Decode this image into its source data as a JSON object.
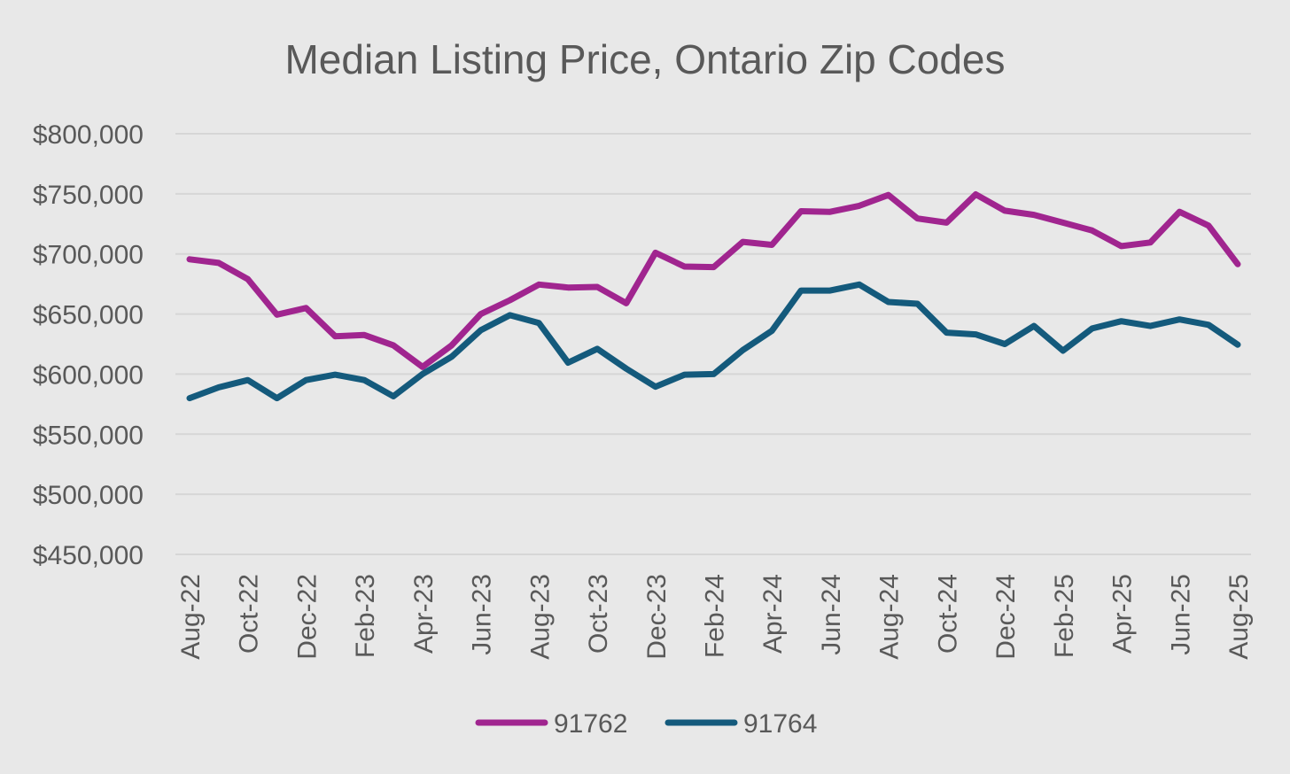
{
  "chart_data": {
    "type": "line",
    "title": "Median Listing Price, Ontario Zip Codes",
    "xlabel": "",
    "ylabel": "",
    "ylim": [
      450000,
      800000
    ],
    "yticks": [
      "$450,000",
      "$500,000",
      "$550,000",
      "$600,000",
      "$650,000",
      "$700,000",
      "$750,000",
      "$800,000"
    ],
    "ytick_values": [
      450000,
      500000,
      550000,
      600000,
      650000,
      700000,
      750000,
      800000
    ],
    "grid": true,
    "legend_position": "bottom",
    "x": [
      "Aug-22",
      "Sep-22",
      "Oct-22",
      "Nov-22",
      "Dec-22",
      "Jan-23",
      "Feb-23",
      "Mar-23",
      "Apr-23",
      "May-23",
      "Jun-23",
      "Jul-23",
      "Aug-23",
      "Sep-23",
      "Oct-23",
      "Nov-23",
      "Dec-23",
      "Jan-24",
      "Feb-24",
      "Mar-24",
      "Apr-24",
      "May-24",
      "Jun-24",
      "Jul-24",
      "Aug-24",
      "Sep-24",
      "Oct-24",
      "Nov-24",
      "Dec-24",
      "Jan-25",
      "Feb-25",
      "Mar-25",
      "Apr-25",
      "May-25",
      "Jun-25",
      "Jul-25",
      "Aug-25"
    ],
    "xtick_labels": [
      "Aug-22",
      "",
      "Oct-22",
      "",
      "Dec-22",
      "",
      "Feb-23",
      "",
      "Apr-23",
      "",
      "Jun-23",
      "",
      "Aug-23",
      "",
      "Oct-23",
      "",
      "Dec-23",
      "",
      "Feb-24",
      "",
      "Apr-24",
      "",
      "Jun-24",
      "",
      "Aug-24",
      "",
      "Oct-24",
      "",
      "Dec-24",
      "",
      "Feb-25",
      "",
      "Apr-25",
      "",
      "Jun-25",
      "",
      "Aug-25"
    ],
    "series": [
      {
        "name": "91762",
        "color": "#a0258f",
        "values": [
          695500,
          692500,
          679000,
          649500,
          655000,
          631500,
          632500,
          624000,
          606000,
          624000,
          650000,
          661500,
          674500,
          672000,
          672500,
          659000,
          701000,
          689500,
          689000,
          710000,
          707500,
          735500,
          735000,
          740000,
          749000,
          729500,
          726000,
          749500,
          736000,
          732500,
          726000,
          719500,
          706500,
          709500,
          735000,
          723500,
          691500
        ]
      },
      {
        "name": "91764",
        "color": "#145a7c",
        "values": [
          580000,
          589000,
          595000,
          580000,
          595000,
          599500,
          595000,
          581500,
          600000,
          614500,
          636500,
          649000,
          642500,
          609500,
          621000,
          604500,
          589500,
          599500,
          600000,
          620000,
          636000,
          669500,
          669500,
          674500,
          660000,
          658500,
          634500,
          633000,
          625000,
          640000,
          619500,
          638000,
          644000,
          640000,
          645500,
          641000,
          624500
        ]
      }
    ]
  }
}
